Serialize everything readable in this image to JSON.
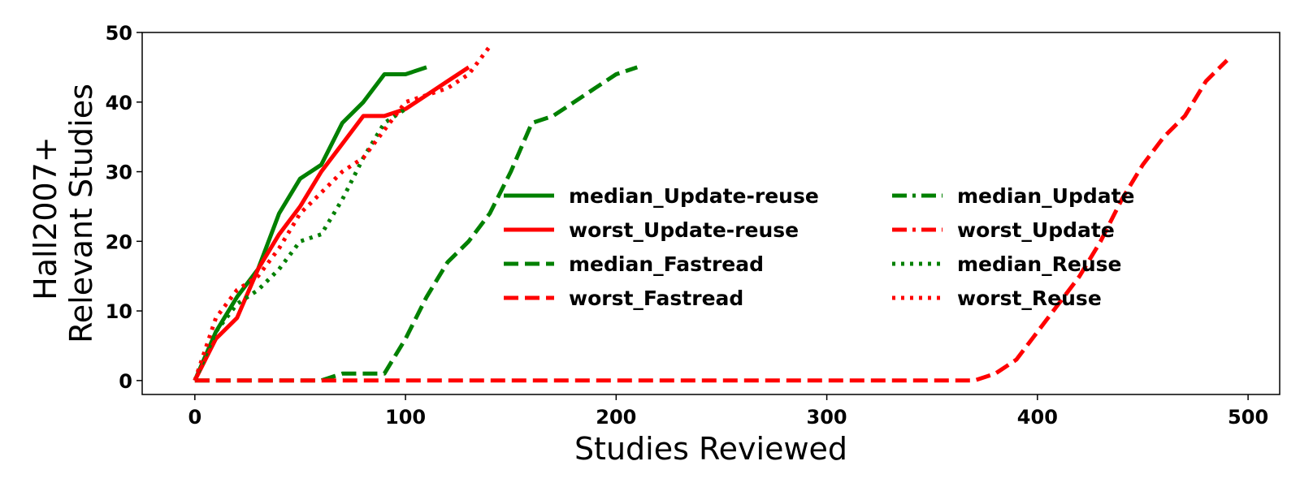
{
  "chart_data": {
    "type": "line",
    "title": "",
    "xlabel": "Studies Reviewed",
    "ylabel_lines": [
      "Hall2007+",
      "Relevant Studies"
    ],
    "xlim": [
      -25,
      515
    ],
    "ylim": [
      -2,
      50
    ],
    "xticks": [
      0,
      100,
      200,
      300,
      400,
      500
    ],
    "yticks": [
      0,
      10,
      20,
      30,
      40,
      50
    ],
    "grid": false,
    "legend_placement": "center-right",
    "series": [
      {
        "name": "median_Update-reuse",
        "color": "#008000",
        "style": "solid",
        "x": [
          0,
          10,
          20,
          30,
          40,
          50,
          60,
          70,
          80,
          90,
          100,
          110
        ],
        "y": [
          0,
          7,
          12,
          16,
          24,
          29,
          31,
          37,
          40,
          44,
          44,
          45
        ]
      },
      {
        "name": "worst_Update-reuse",
        "color": "#ff0000",
        "style": "solid",
        "x": [
          0,
          10,
          20,
          30,
          40,
          50,
          60,
          70,
          80,
          90,
          100,
          110,
          120,
          130
        ],
        "y": [
          0,
          6,
          9,
          16,
          21,
          25,
          30,
          34,
          38,
          38,
          39,
          41,
          43,
          45
        ]
      },
      {
        "name": "median_Fastread",
        "color": "#008000",
        "style": "dashed",
        "x": [
          0,
          60,
          70,
          80,
          90,
          100,
          110,
          120,
          130,
          140,
          150,
          160,
          170,
          180,
          190,
          200,
          210
        ],
        "y": [
          0,
          0,
          1,
          1,
          1,
          6,
          12,
          17,
          20,
          24,
          30,
          37,
          38,
          40,
          42,
          44,
          45
        ]
      },
      {
        "name": "worst_Fastread",
        "color": "#ff0000",
        "style": "dashed",
        "x": [
          0,
          370,
          380,
          390,
          400,
          410,
          420,
          430,
          440,
          450,
          460,
          470,
          480,
          490
        ],
        "y": [
          0,
          0,
          1,
          3,
          7,
          11,
          15,
          20,
          26,
          31,
          35,
          38,
          43,
          46
        ]
      },
      {
        "name": "median_Update",
        "color": "#008000",
        "style": "dashdot",
        "x": [],
        "y": []
      },
      {
        "name": "worst_Update",
        "color": "#ff0000",
        "style": "dashdot",
        "x": [],
        "y": []
      },
      {
        "name": "median_Reuse",
        "color": "#008000",
        "style": "dotted",
        "x": [
          0,
          10,
          20,
          30,
          40,
          50,
          60,
          70,
          80,
          90,
          100
        ],
        "y": [
          0,
          7,
          11,
          13,
          16,
          20,
          21,
          26,
          32,
          37,
          39
        ]
      },
      {
        "name": "worst_Reuse",
        "color": "#ff0000",
        "style": "dotted",
        "x": [
          0,
          10,
          20,
          30,
          40,
          50,
          60,
          70,
          80,
          90,
          100,
          110,
          120,
          130,
          140
        ],
        "y": [
          0,
          9,
          13,
          15,
          19,
          24,
          27,
          30,
          32,
          36,
          40,
          41,
          42,
          44,
          48
        ]
      }
    ]
  }
}
